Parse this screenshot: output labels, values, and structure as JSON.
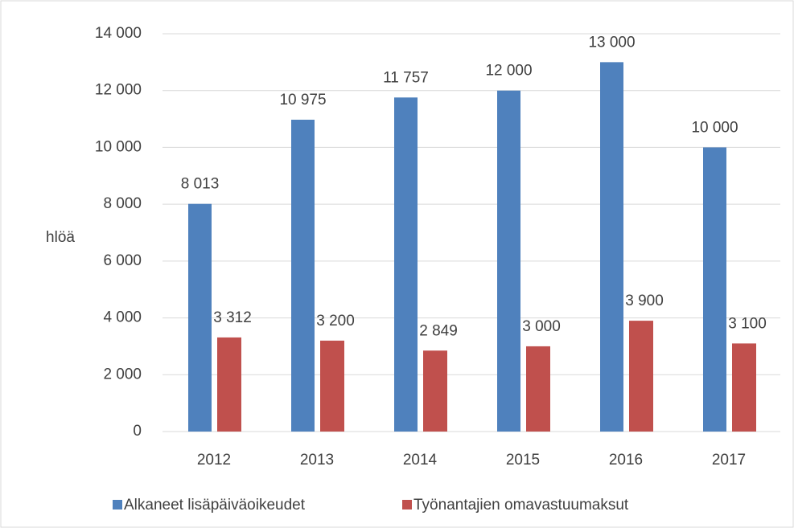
{
  "chart_data": {
    "type": "bar",
    "y_label": "hlöä",
    "categories": [
      "2012",
      "2013",
      "2014",
      "2015",
      "2016",
      "2017"
    ],
    "series": [
      {
        "name": "Alkaneet lisäpäiväoikeudet",
        "color": "#4f81bd",
        "values": [
          8013,
          10975,
          11757,
          12000,
          13000,
          10000
        ],
        "value_labels": [
          "8 013",
          "10 975",
          "11 757",
          "12 000",
          "13 000",
          "10 000"
        ]
      },
      {
        "name": "Työnantajien omavastuumaksut",
        "color": "#c0504d",
        "values": [
          3312,
          3200,
          2849,
          3000,
          3900,
          3100
        ],
        "value_labels": [
          "3 312",
          "3 200",
          "2 849",
          "3 000",
          "3 900",
          "3 100"
        ]
      }
    ],
    "ylim": [
      0,
      14000
    ],
    "yticks": [
      0,
      {
        "value": 2000,
        "label": "2 000"
      },
      {
        "value": 4000,
        "label": "4 000"
      },
      {
        "value": 6000,
        "label": "6 000"
      },
      {
        "value": 8000,
        "label": "8 000"
      },
      {
        "value": 10000,
        "label": "10 000"
      },
      {
        "value": 12000,
        "label": "12 000"
      },
      {
        "value": 14000,
        "label": "14 000"
      }
    ],
    "grid": true,
    "legend": "bottom"
  }
}
